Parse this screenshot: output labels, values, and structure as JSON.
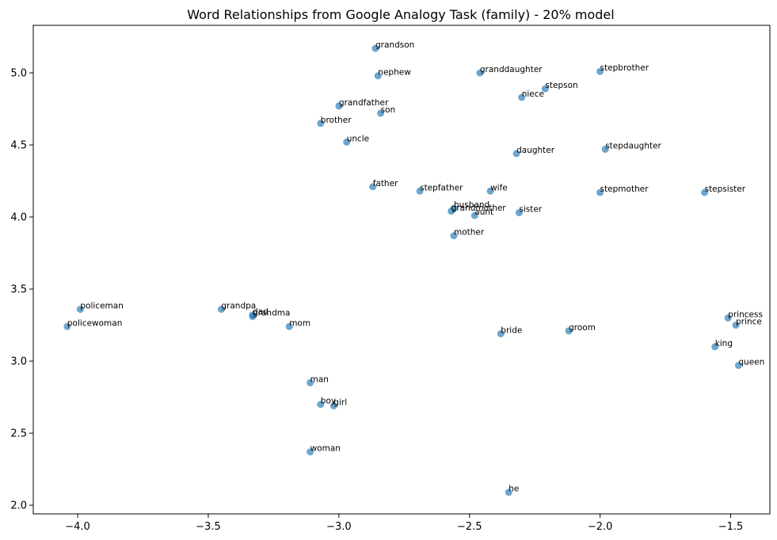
{
  "chart_data": {
    "type": "scatter",
    "title": "Word Relationships from Google Analogy Task (family) - 20% model",
    "xlabel": "",
    "ylabel": "",
    "xlim": [
      -4.17,
      -1.35
    ],
    "ylim": [
      1.94,
      5.33
    ],
    "xticks": [
      -4.0,
      -3.5,
      -3.0,
      -2.5,
      -2.0,
      -1.5
    ],
    "xtick_labels": [
      "−4.0",
      "−3.5",
      "−3.0",
      "−2.5",
      "−2.0",
      "−1.5"
    ],
    "yticks": [
      2.0,
      2.5,
      3.0,
      3.5,
      4.0,
      4.5,
      5.0
    ],
    "ytick_labels": [
      "2.0",
      "2.5",
      "3.0",
      "3.5",
      "4.0",
      "4.5",
      "5.0"
    ],
    "grid": false,
    "point_color": "#1f77b4",
    "point_alpha": 0.65,
    "points": [
      {
        "label": "grandson",
        "x": -2.86,
        "y": 5.17
      },
      {
        "label": "granddaughter",
        "x": -2.46,
        "y": 5.0
      },
      {
        "label": "stepbrother",
        "x": -2.0,
        "y": 5.01
      },
      {
        "label": "nephew",
        "x": -2.85,
        "y": 4.98
      },
      {
        "label": "stepson",
        "x": -2.21,
        "y": 4.89
      },
      {
        "label": "niece",
        "x": -2.3,
        "y": 4.83
      },
      {
        "label": "grandfather",
        "x": -3.0,
        "y": 4.77
      },
      {
        "label": "son",
        "x": -2.84,
        "y": 4.72
      },
      {
        "label": "brother",
        "x": -3.07,
        "y": 4.65
      },
      {
        "label": "uncle",
        "x": -2.97,
        "y": 4.52
      },
      {
        "label": "stepdaughter",
        "x": -1.98,
        "y": 4.47
      },
      {
        "label": "daughter",
        "x": -2.32,
        "y": 4.44
      },
      {
        "label": "father",
        "x": -2.87,
        "y": 4.21
      },
      {
        "label": "stepfather",
        "x": -2.69,
        "y": 4.18
      },
      {
        "label": "wife",
        "x": -2.42,
        "y": 4.18
      },
      {
        "label": "stepmother",
        "x": -2.0,
        "y": 4.17
      },
      {
        "label": "stepsister",
        "x": -1.6,
        "y": 4.17
      },
      {
        "label": "husband",
        "x": -2.56,
        "y": 4.06
      },
      {
        "label": "grandmother",
        "x": -2.57,
        "y": 4.04
      },
      {
        "label": "aunt",
        "x": -2.48,
        "y": 4.01
      },
      {
        "label": "sister",
        "x": -2.31,
        "y": 4.03
      },
      {
        "label": "mother",
        "x": -2.56,
        "y": 3.87
      },
      {
        "label": "policeman",
        "x": -3.99,
        "y": 3.36
      },
      {
        "label": "grandpa",
        "x": -3.45,
        "y": 3.36
      },
      {
        "label": "dad",
        "x": -3.33,
        "y": 3.32
      },
      {
        "label": "grandma",
        "x": -3.33,
        "y": 3.31
      },
      {
        "label": "mom",
        "x": -3.19,
        "y": 3.24
      },
      {
        "label": "policewoman",
        "x": -4.04,
        "y": 3.24
      },
      {
        "label": "princess",
        "x": -1.51,
        "y": 3.3
      },
      {
        "label": "prince",
        "x": -1.48,
        "y": 3.25
      },
      {
        "label": "bride",
        "x": -2.38,
        "y": 3.19
      },
      {
        "label": "groom",
        "x": -2.12,
        "y": 3.21
      },
      {
        "label": "king",
        "x": -1.56,
        "y": 3.1
      },
      {
        "label": "queen",
        "x": -1.47,
        "y": 2.97
      },
      {
        "label": "man",
        "x": -3.11,
        "y": 2.85
      },
      {
        "label": "boy",
        "x": -3.07,
        "y": 2.7
      },
      {
        "label": "girl",
        "x": -3.02,
        "y": 2.69
      },
      {
        "label": "woman",
        "x": -3.11,
        "y": 2.37
      },
      {
        "label": "he",
        "x": -2.35,
        "y": 2.09
      }
    ]
  }
}
